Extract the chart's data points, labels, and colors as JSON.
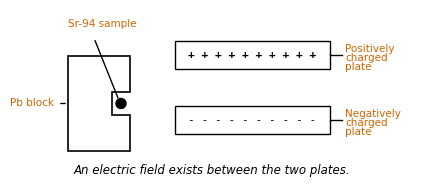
{
  "bg_color": "#ffffff",
  "text_color": "#000000",
  "orange_color": "#cc6600",
  "fig_width": 4.24,
  "fig_height": 1.89,
  "dpi": 100,
  "caption": "An electric field exists between the two plates.",
  "sr_label": "Sr-94 sample",
  "pb_label": "Pb block",
  "pos_label": [
    "Positively",
    "charged",
    "plate"
  ],
  "neg_label": [
    "Negatively",
    "charged",
    "plate"
  ],
  "plus_symbols": "+ + + + + + + + + +",
  "minus_symbols": "- - - - - - - - - -"
}
